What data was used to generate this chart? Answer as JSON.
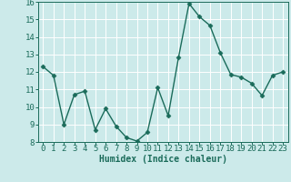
{
  "x": [
    0,
    1,
    2,
    3,
    4,
    5,
    6,
    7,
    8,
    9,
    10,
    11,
    12,
    13,
    14,
    15,
    16,
    17,
    18,
    19,
    20,
    21,
    22,
    23
  ],
  "y": [
    12.3,
    11.8,
    9.0,
    10.7,
    10.9,
    8.7,
    9.9,
    8.9,
    8.25,
    8.05,
    8.55,
    11.1,
    9.5,
    12.85,
    15.9,
    15.15,
    14.65,
    13.1,
    11.85,
    11.7,
    11.35,
    10.65,
    11.8,
    12.0
  ],
  "xlabel": "Humidex (Indice chaleur)",
  "line_color": "#1a6b5a",
  "marker": "D",
  "marker_size": 2.5,
  "bg_color": "#cceaea",
  "grid_color": "#ffffff",
  "ylim": [
    8,
    16
  ],
  "yticks": [
    8,
    9,
    10,
    11,
    12,
    13,
    14,
    15,
    16
  ],
  "xticks": [
    0,
    1,
    2,
    3,
    4,
    5,
    6,
    7,
    8,
    9,
    10,
    11,
    12,
    13,
    14,
    15,
    16,
    17,
    18,
    19,
    20,
    21,
    22,
    23
  ],
  "tick_color": "#1a6b5a",
  "label_fontsize": 7,
  "tick_fontsize": 6.5
}
